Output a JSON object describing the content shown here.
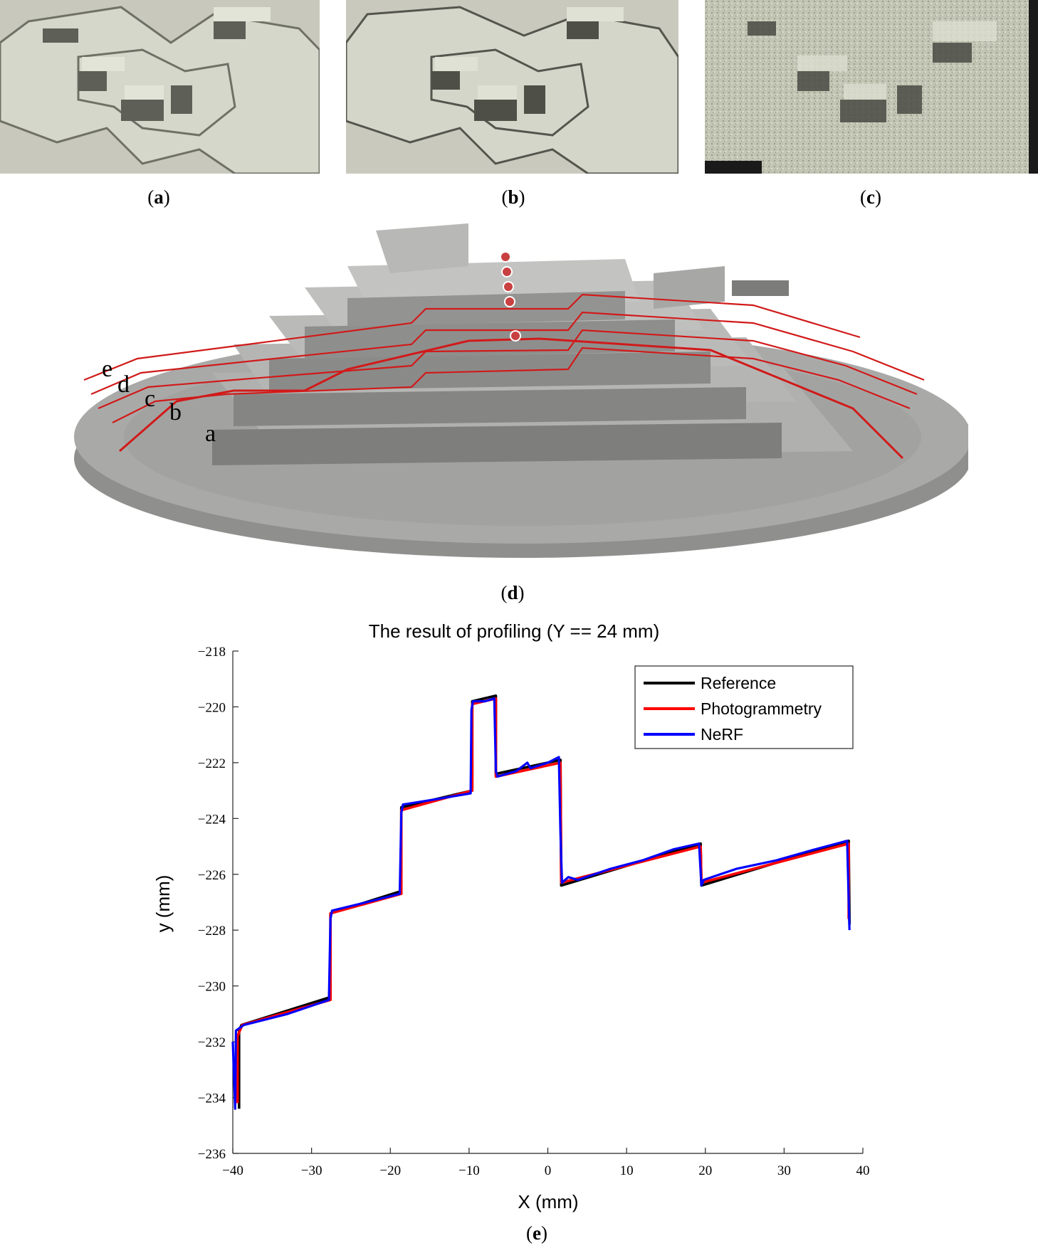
{
  "panels": {
    "a": {
      "caption_open": "(",
      "caption_letter": "a",
      "caption_close": ")"
    },
    "b": {
      "caption_open": "(",
      "caption_letter": "b",
      "caption_close": ")"
    },
    "c": {
      "caption_open": "(",
      "caption_letter": "c",
      "caption_close": ")"
    },
    "d": {
      "caption_open": "(",
      "caption_letter": "d",
      "caption_close": ")",
      "profile_labels": [
        "e",
        "d",
        "c",
        "b",
        "a"
      ]
    },
    "e": {
      "caption_open": "(",
      "caption_letter": "e",
      "caption_close": ")"
    }
  },
  "colors": {
    "model_fill": "#a4a5a3",
    "model_dark": "#7d7e7c",
    "model_light": "#c1c2c0",
    "mesh_bg": "#cfd0c3",
    "profile_line": "#d11a1a",
    "reference": "#000000",
    "photogrammetry": "#ff0000",
    "nerf": "#0000ff"
  },
  "chart_data": {
    "type": "line",
    "title": "The result of profiling (Y == 24 mm)",
    "xlabel": "X (mm)",
    "ylabel": "y (mm)",
    "xlim": [
      -40,
      40
    ],
    "ylim": [
      -236,
      -218
    ],
    "xticks": [
      -40,
      -30,
      -20,
      -10,
      0,
      10,
      20,
      30,
      40
    ],
    "yticks": [
      -218,
      -220,
      -222,
      -224,
      -226,
      -228,
      -230,
      -232,
      -234,
      -236
    ],
    "legend_position": "top-right",
    "grid": false,
    "series": [
      {
        "name": "Reference",
        "color": "#000000",
        "x": [
          -39.2,
          -39.2,
          -38.9,
          -27.6,
          -27.6,
          -18.6,
          -18.6,
          -9.6,
          -9.6,
          -6.6,
          -6.6,
          1.6,
          1.7,
          19.4,
          19.5,
          38.2,
          38.3
        ],
        "y": [
          -234.4,
          -231.6,
          -231.4,
          -230.4,
          -227.4,
          -226.6,
          -223.6,
          -223.0,
          -219.8,
          -219.6,
          -222.4,
          -221.9,
          -226.4,
          -224.9,
          -226.4,
          -224.8,
          -227.8
        ]
      },
      {
        "name": "Photogrammetry",
        "color": "#ff0000",
        "x": [
          -39.4,
          -39.4,
          -38.8,
          -27.6,
          -27.6,
          -18.6,
          -18.6,
          -9.6,
          -9.6,
          -6.6,
          -6.6,
          1.6,
          1.7,
          19.4,
          19.5,
          38.2,
          38.2
        ],
        "y": [
          -234.2,
          -231.8,
          -231.4,
          -230.5,
          -227.4,
          -226.7,
          -223.7,
          -223.0,
          -219.9,
          -219.7,
          -222.5,
          -222.0,
          -226.3,
          -225.0,
          -226.3,
          -224.9,
          -227.6
        ]
      },
      {
        "name": "NeRF",
        "color": "#0000ff",
        "x": [
          -40.0,
          -39.7,
          -39.6,
          -38.6,
          -33.0,
          -27.8,
          -27.6,
          -27.4,
          -23.0,
          -18.8,
          -18.6,
          -18.4,
          -14.0,
          -9.8,
          -9.7,
          -9.5,
          -8.0,
          -6.8,
          -6.6,
          -6.4,
          -4.0,
          -2.6,
          -2.2,
          0.0,
          1.4,
          1.6,
          1.8,
          2.6,
          3.8,
          8.0,
          12.0,
          16.0,
          19.2,
          19.5,
          19.8,
          24.0,
          29.0,
          34.0,
          38.0,
          38.3
        ],
        "y": [
          -232.0,
          -234.4,
          -231.6,
          -231.4,
          -231.0,
          -230.5,
          -227.6,
          -227.3,
          -227.0,
          -226.7,
          -223.8,
          -223.5,
          -223.3,
          -223.1,
          -220.1,
          -219.8,
          -219.8,
          -219.7,
          -222.3,
          -222.5,
          -222.3,
          -222.0,
          -222.2,
          -222.0,
          -221.8,
          -224.5,
          -226.3,
          -226.1,
          -226.2,
          -225.8,
          -225.5,
          -225.1,
          -224.9,
          -226.4,
          -226.2,
          -225.8,
          -225.5,
          -225.1,
          -224.8,
          -228.0
        ]
      }
    ]
  }
}
